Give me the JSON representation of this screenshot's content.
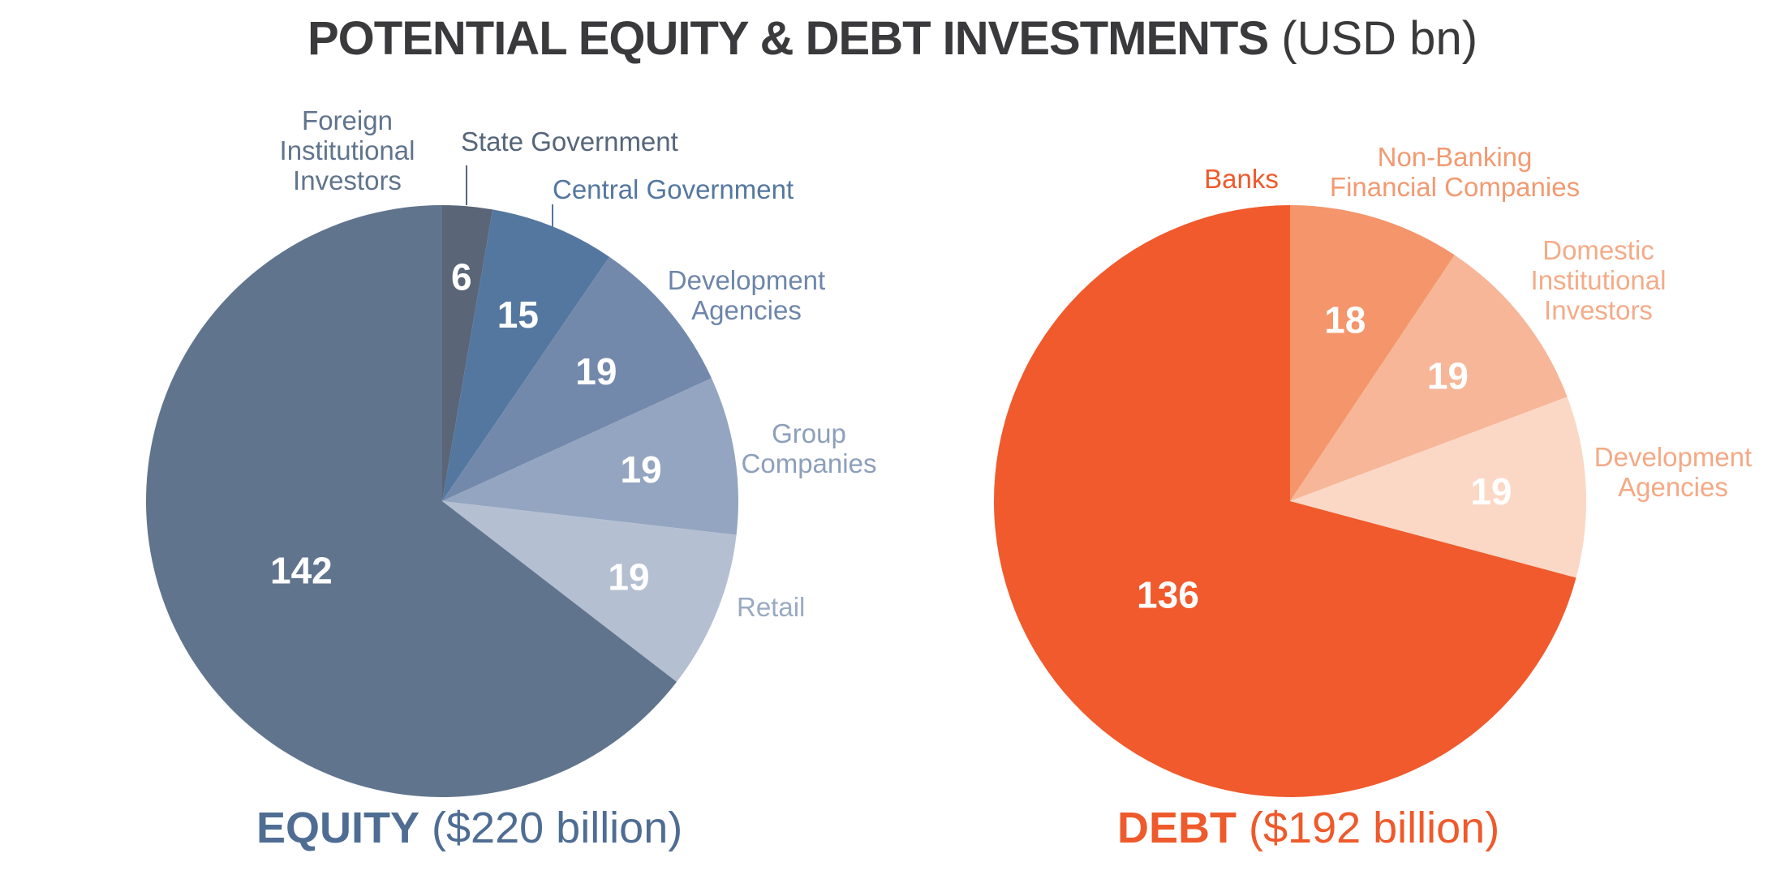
{
  "title": "POTENTIAL EQUITY & DEBT INVESTMENTS",
  "title_unit": "(USD bn)",
  "chart_data": [
    {
      "type": "pie",
      "caption_main": "EQUITY",
      "caption_sub": "($220 billion)",
      "caption_color": "#4f6d93",
      "slices": [
        {
          "label": "State Government",
          "value": 6,
          "value_label": "6",
          "color": "#5a6578",
          "label_color": "#56657a"
        },
        {
          "label": "Central Government",
          "value": 15,
          "value_label": "15",
          "color": "#54779f",
          "label_color": "#54779f"
        },
        {
          "label": "Development Agencies",
          "value": 19,
          "value_label": "19",
          "color": "#7389ab",
          "label_color": "#6e86aa"
        },
        {
          "label": "Group Companies",
          "value": 19,
          "value_label": "19",
          "color": "#93a5c0",
          "label_color": "#8d9fba"
        },
        {
          "label": "Retail",
          "value": 19,
          "value_label": "19",
          "color": "#b4bfd2",
          "label_color": "#9aaac2"
        },
        {
          "label": "Foreign Institutional Investors",
          "value": 142,
          "value_label": "142",
          "color": "#61748d",
          "label_color": "#61748d"
        }
      ]
    },
    {
      "type": "pie",
      "caption_main": "DEBT",
      "caption_sub": "($192 billion)",
      "caption_color": "#ee5a2c",
      "slices": [
        {
          "label": "Non-Banking Financial Companies",
          "value": 18,
          "value_label": "18",
          "color": "#f4956b",
          "label_color": "#f29a72"
        },
        {
          "label": "Domestic Institutional Investors",
          "value": 19,
          "value_label": "19",
          "color": "#f7b698",
          "label_color": "#f4ab88"
        },
        {
          "label": "Development Agencies",
          "value": 19,
          "value_label": "19",
          "color": "#fbd8c6",
          "label_color": "#f5a985"
        },
        {
          "label": "Banks",
          "value": 136,
          "value_label": "136",
          "color": "#f05a2c",
          "label_color": "#ee5a2c"
        }
      ]
    }
  ]
}
